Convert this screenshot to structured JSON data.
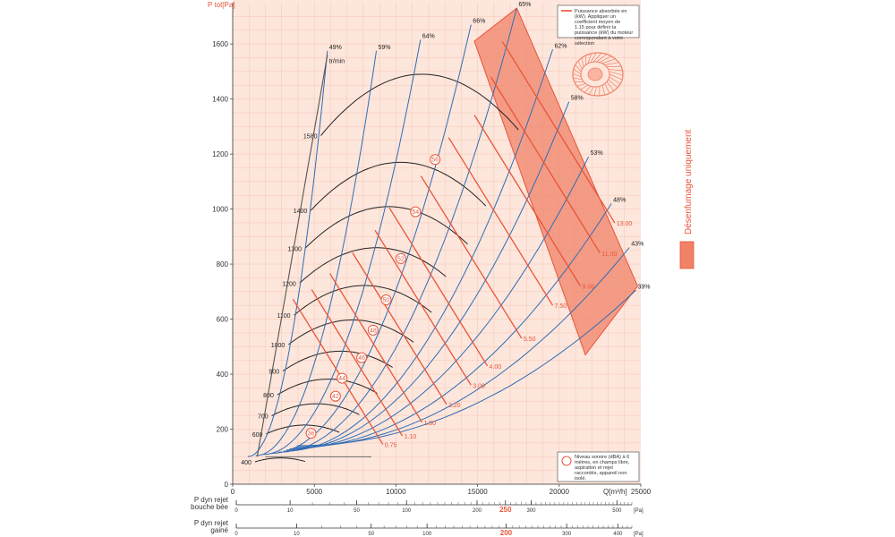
{
  "chart_data": {
    "type": "line",
    "ylabel": "P tot[Pa]",
    "xlabel": "Q[m³/h]",
    "xlim": [
      0,
      25000
    ],
    "ylim": [
      0,
      1750
    ],
    "x_ticks": [
      "0",
      "5000",
      "10000",
      "15000",
      "20000",
      "25000"
    ],
    "y_ticks": [
      "0",
      "200",
      "400",
      "600",
      "800",
      "1000",
      "1200",
      "1400",
      "1600"
    ],
    "grid": true,
    "speed_unit": "tr/min",
    "speed_curves": [
      {
        "label": "400",
        "rpm": 400
      },
      {
        "label": "600",
        "rpm": 600
      },
      {
        "label": "700",
        "rpm": 700
      },
      {
        "label": "800",
        "rpm": 800
      },
      {
        "label": "900",
        "rpm": 900
      },
      {
        "label": "1000",
        "rpm": 1000
      },
      {
        "label": "1100",
        "rpm": 1100
      },
      {
        "label": "1200",
        "rpm": 1200
      },
      {
        "label": "1300",
        "rpm": 1300
      },
      {
        "label": "1400",
        "rpm": 1400
      },
      {
        "label": "1580",
        "rpm": 1580
      }
    ],
    "efficiency_curves": [
      {
        "label": "49%",
        "x": 5800,
        "y": 1575
      },
      {
        "label": "59%",
        "x": 8800,
        "y": 1575
      },
      {
        "label": "64%",
        "x": 11500,
        "y": 1615
      },
      {
        "label": "66%",
        "x": 14600,
        "y": 1670
      },
      {
        "label": "65%",
        "x": 17400,
        "y": 1730
      },
      {
        "label": "62%",
        "x": 19600,
        "y": 1580
      },
      {
        "label": "58%",
        "x": 20600,
        "y": 1390
      },
      {
        "label": "53%",
        "x": 21800,
        "y": 1190
      },
      {
        "label": "48%",
        "x": 23200,
        "y": 1020
      },
      {
        "label": "43%",
        "x": 24300,
        "y": 860
      },
      {
        "label": "39%",
        "x": 24700,
        "y": 705
      }
    ],
    "power_labels": [
      {
        "label": "0.75",
        "x": 9200,
        "y": 145
      },
      {
        "label": "1.10",
        "x": 10400,
        "y": 175
      },
      {
        "label": "1.50",
        "x": 11600,
        "y": 225
      },
      {
        "label": "2.20",
        "x": 13100,
        "y": 290
      },
      {
        "label": "3.00",
        "x": 14600,
        "y": 360
      },
      {
        "label": "4.00",
        "x": 15600,
        "y": 430
      },
      {
        "label": "5.50",
        "x": 17700,
        "y": 530
      },
      {
        "label": "7.50",
        "x": 19600,
        "y": 650
      },
      {
        "label": "9.00",
        "x": 21300,
        "y": 720
      },
      {
        "label": "11.00",
        "x": 22500,
        "y": 840
      },
      {
        "label": "13.00",
        "x": 23400,
        "y": 950
      }
    ],
    "noise_labels": [
      {
        "label": "36",
        "x": 4800,
        "y": 185
      },
      {
        "label": "42",
        "x": 6300,
        "y": 320
      },
      {
        "label": "44",
        "x": 6700,
        "y": 385
      },
      {
        "label": "46",
        "x": 7900,
        "y": 460
      },
      {
        "label": "48",
        "x": 8600,
        "y": 560
      },
      {
        "label": "50",
        "x": 9400,
        "y": 670
      },
      {
        "label": "52",
        "x": 10300,
        "y": 820
      },
      {
        "label": "54",
        "x": 11200,
        "y": 990
      },
      {
        "label": "56",
        "x": 12400,
        "y": 1180
      }
    ],
    "smoke_zone_label": "Désenfumage uniquement",
    "legend_power": "Puissance absorbée en (kW). Appliquer un coefficient moyen de 1.15 pour définir la puissance (kW) du moteur correspondant à votre sélection",
    "legend_noise": "Niveau sonore (dBA) à 6 mètres, en champs libre, aspiration et rejet raccordés, appareil non isolé.",
    "dyn_scales": [
      {
        "label_lines": [
          "P dyn rejet",
          "bouche bée"
        ],
        "ticks": [
          "0",
          "10",
          "50",
          "100",
          "200",
          "250",
          "300",
          "500"
        ],
        "tick_values": [
          0,
          10,
          50,
          100,
          200,
          250,
          300,
          500
        ],
        "highlight": "250",
        "unit": "[Pa]"
      },
      {
        "label_lines": [
          "P dyn rejet",
          "gainé"
        ],
        "ticks": [
          "0",
          "10",
          "50",
          "100",
          "200",
          "300",
          "400"
        ],
        "tick_values": [
          0,
          10,
          50,
          100,
          200,
          300,
          400
        ],
        "highlight": "200",
        "unit": "[Pa]"
      }
    ],
    "colors": {
      "background": "#fde6dc",
      "grid": "#f7c7b4",
      "speed": "#222222",
      "efficiency": "#2f6db5",
      "power": "#e8553a",
      "zone": "#f08268"
    }
  }
}
